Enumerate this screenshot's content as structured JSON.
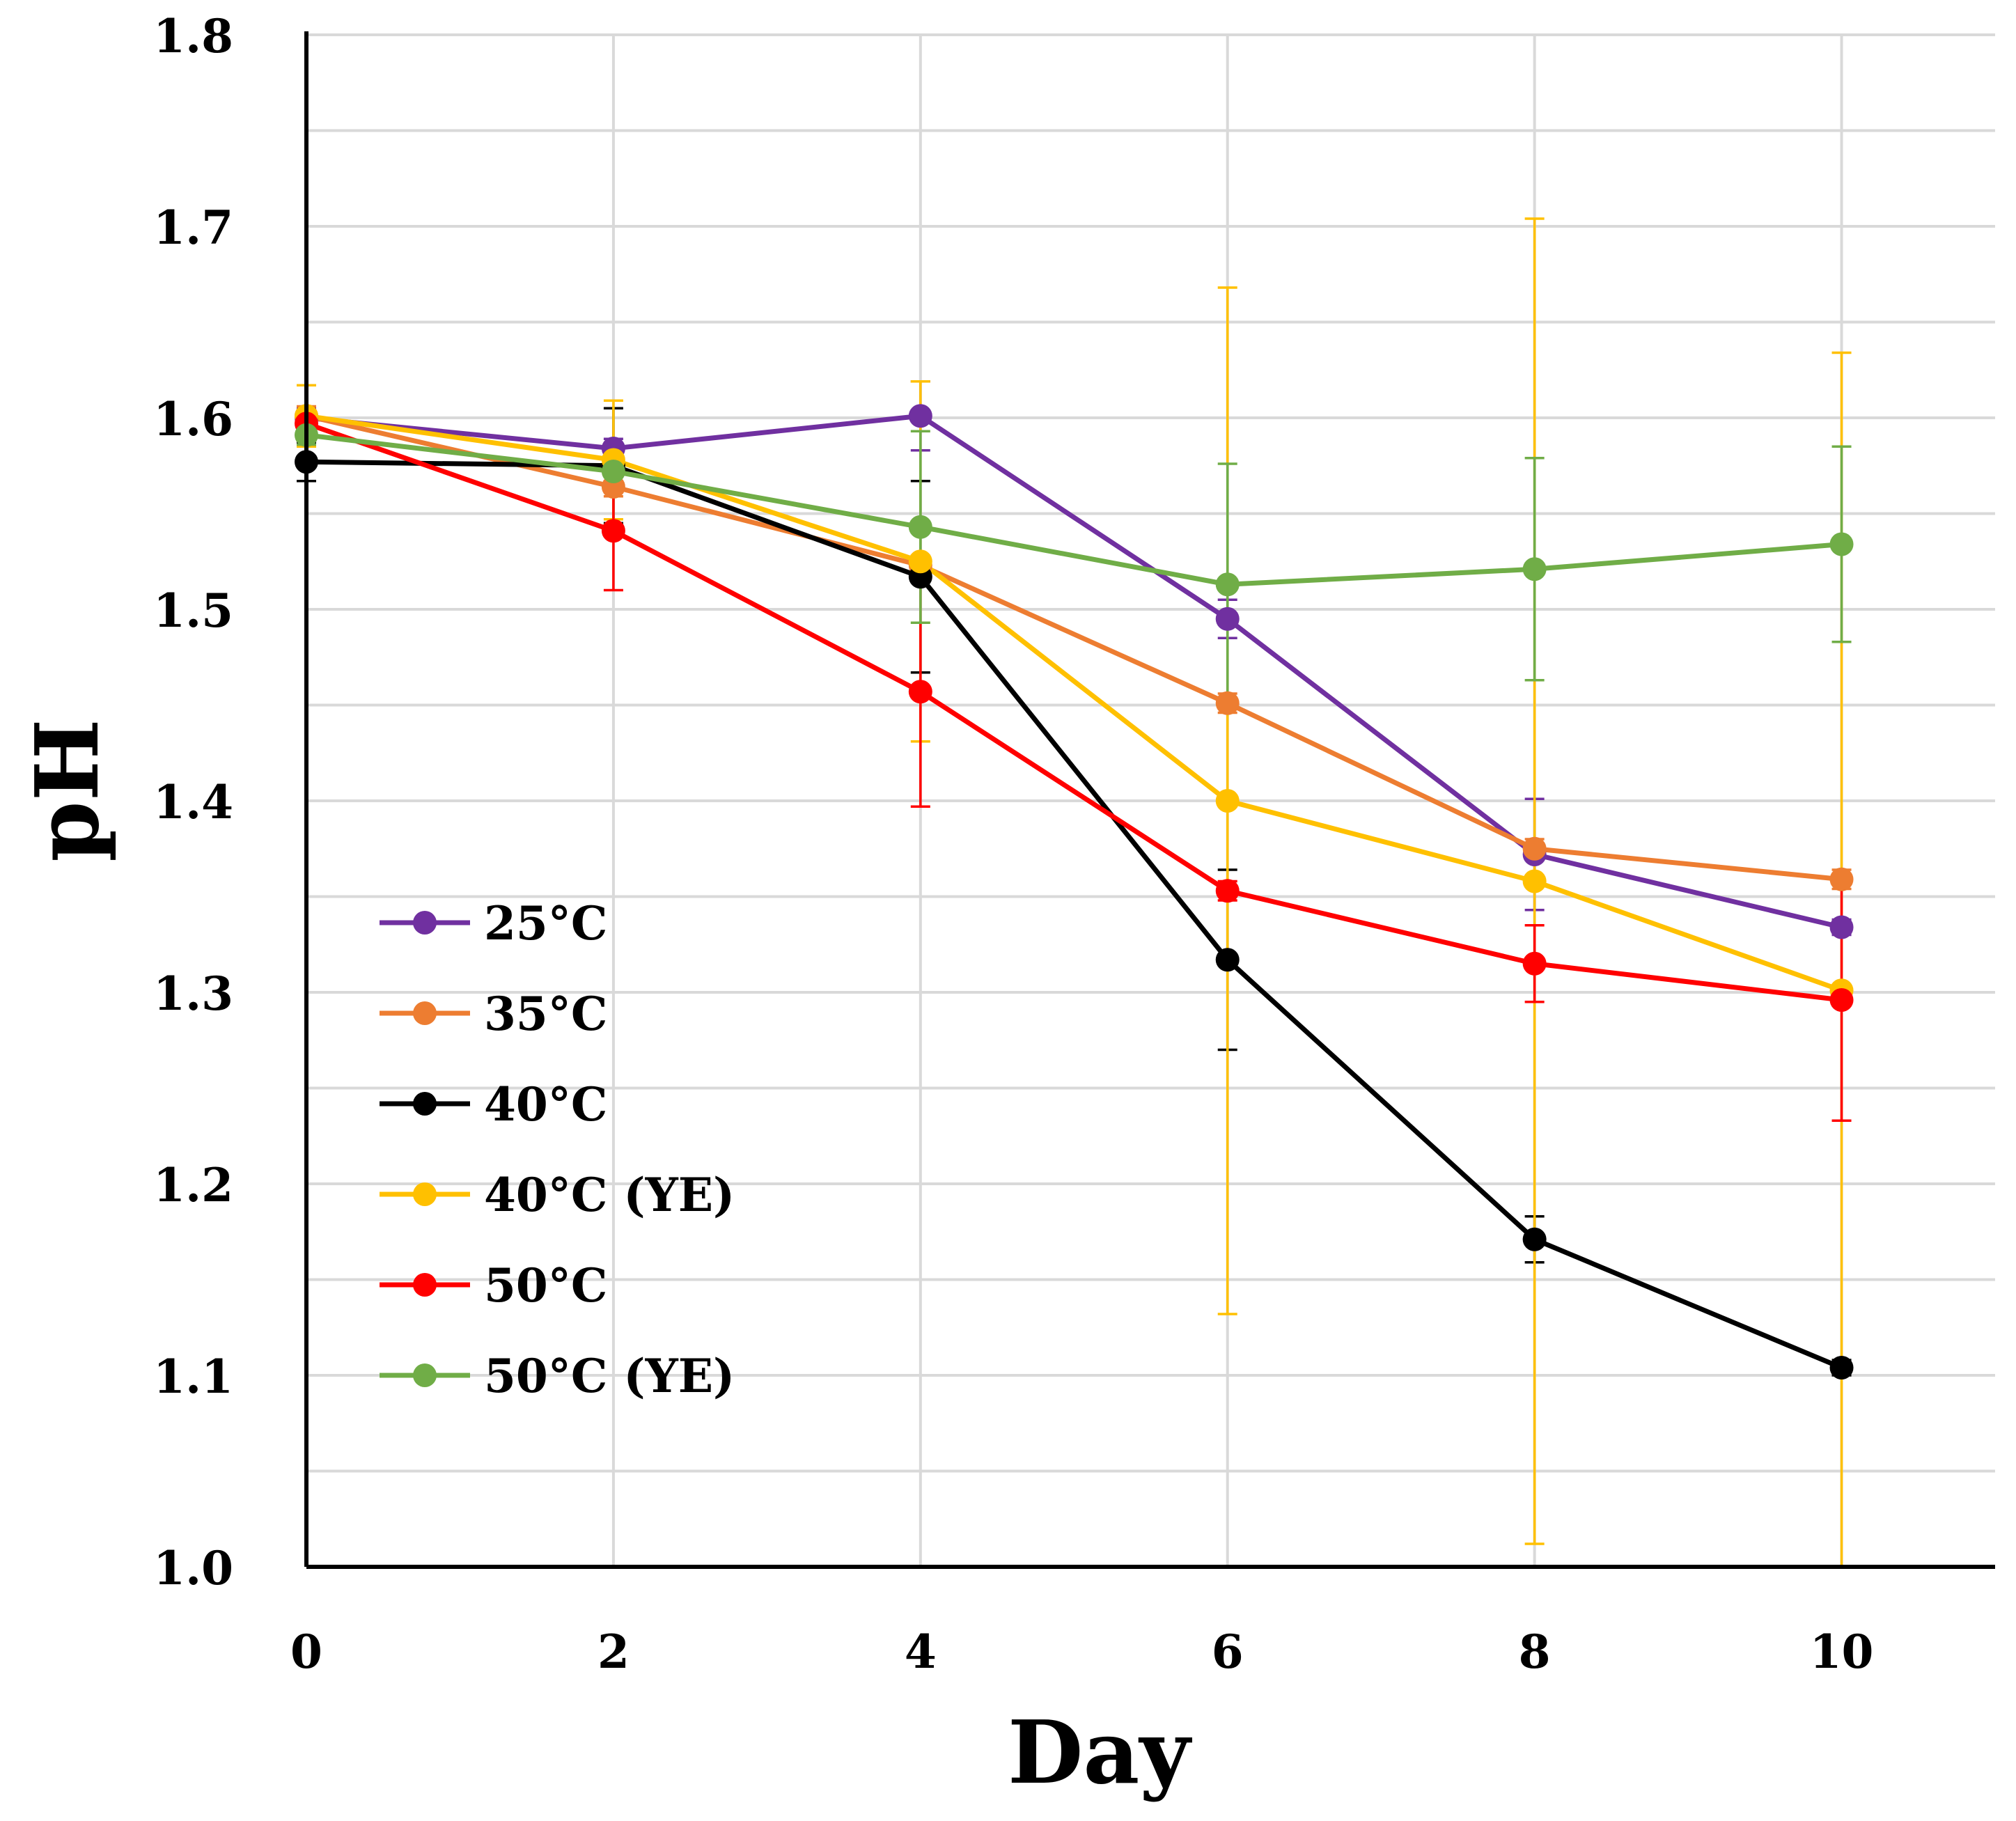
{
  "chart_data": {
    "type": "line",
    "title": "",
    "xlabel": "Day",
    "ylabel": "pH",
    "x": [
      0,
      2,
      4,
      6,
      8,
      10
    ],
    "xlim": [
      0,
      11
    ],
    "ylim": [
      1.0,
      1.8
    ],
    "x_ticks": [
      "0",
      "2",
      "4",
      "6",
      "8",
      "10"
    ],
    "y_ticks": [
      "1.0",
      "1.1",
      "1.2",
      "1.3",
      "1.4",
      "1.5",
      "1.6",
      "1.7",
      "1.8"
    ],
    "grid": true,
    "legend_position": "bottom-left",
    "series": [
      {
        "name": "25°C",
        "color": "#7030A0",
        "values": [
          1.6,
          1.584,
          1.601,
          1.495,
          1.372,
          1.334
        ],
        "errors": [
          0.005,
          0.005,
          0.018,
          0.01,
          0.029,
          0.004
        ]
      },
      {
        "name": "35°C",
        "color": "#ED7D31",
        "values": [
          1.601,
          1.564,
          1.523,
          1.451,
          1.375,
          1.359
        ],
        "errors": [
          0.005,
          0.005,
          0.005,
          0.005,
          0.005,
          0.005
        ]
      },
      {
        "name": "40°C",
        "color": "#000000",
        "values": [
          1.577,
          1.575,
          1.517,
          1.317,
          1.171,
          1.104
        ],
        "errors": [
          0.01,
          0.03,
          0.05,
          0.047,
          0.012,
          0.004
        ]
      },
      {
        "name": "40°C (YE)",
        "color": "#FFC000",
        "values": [
          1.601,
          1.578,
          1.525,
          1.4,
          1.358,
          1.301
        ],
        "errors": [
          0.016,
          0.031,
          0.094,
          0.268,
          0.346,
          0.333
        ]
      },
      {
        "name": "50°C",
        "color": "#FF0000",
        "values": [
          1.597,
          1.541,
          1.457,
          1.353,
          1.315,
          1.296
        ],
        "errors": [
          0.005,
          0.031,
          0.06,
          0.005,
          0.02,
          0.063
        ]
      },
      {
        "name": "50°C (YE)",
        "color": "#70AD47",
        "values": [
          1.591,
          1.572,
          1.543,
          1.513,
          1.521,
          1.534
        ],
        "errors": [
          0.005,
          0.005,
          0.05,
          0.063,
          0.058,
          0.051
        ]
      }
    ]
  }
}
